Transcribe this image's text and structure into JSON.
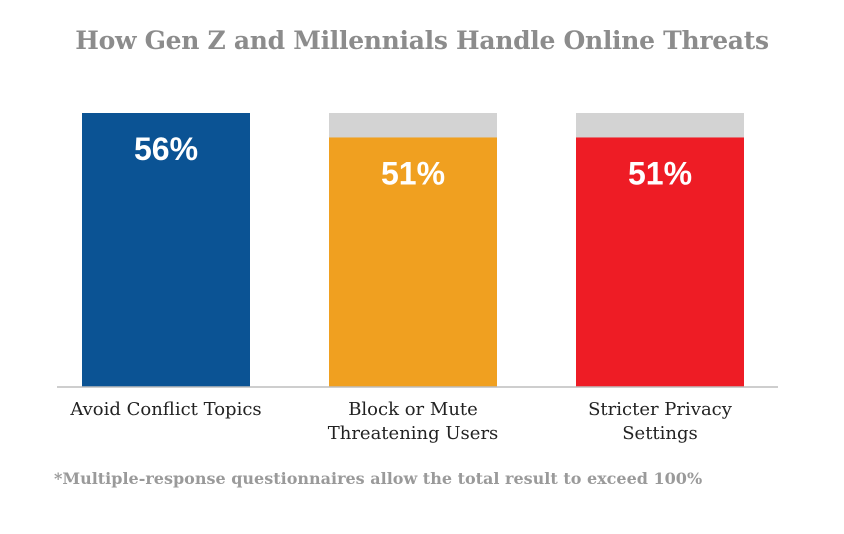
{
  "chart_data": {
    "type": "bar",
    "title": "How Gen Z and Millennials Handle Online Threats",
    "categories": [
      "Avoid Conflict Topics",
      "Block or Mute\nThreatening Users",
      "Stricter Privacy\nSettings"
    ],
    "values": [
      56,
      51,
      51
    ],
    "value_labels": [
      "56%",
      "51%",
      "51%"
    ],
    "colors": [
      "#0b5394",
      "#f0a020",
      "#ee1c25"
    ],
    "track_color": "#d3d3d3",
    "ylim": [
      0,
      56
    ],
    "xlabel": "",
    "ylabel": "",
    "grid": false
  },
  "footnote": "*Multiple-response questionnaires allow the total result to exceed 100%"
}
